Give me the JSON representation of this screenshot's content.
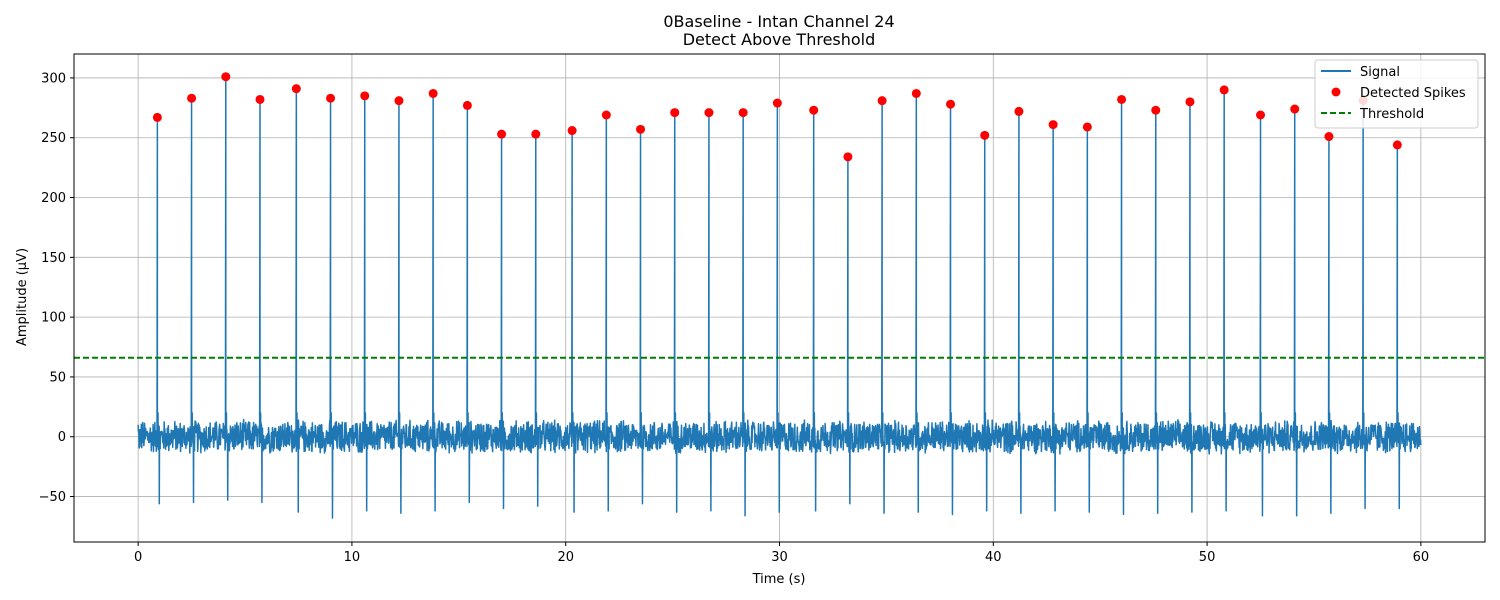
{
  "chart_data": {
    "type": "line",
    "title": "0Baseline - Intan Channel 24",
    "subtitle": "Detect Above Threshold",
    "xlabel": "Time (s)",
    "ylabel": "Amplitude (μV)",
    "xlim": [
      -3,
      63
    ],
    "ylim": [
      -88,
      320
    ],
    "xticks": [
      0,
      10,
      20,
      30,
      40,
      50,
      60
    ],
    "yticks": [
      -50,
      0,
      50,
      100,
      150,
      200,
      250,
      300
    ],
    "grid": true,
    "legend_position": "top-right",
    "threshold": 66,
    "colors": {
      "signal": "#1f77b4",
      "spikes": "#ff0000",
      "threshold": "#008000"
    },
    "series": [
      {
        "name": "Signal",
        "style": "line",
        "x_range": [
          0,
          60
        ],
        "noise_amplitude": 15,
        "trough_values": [
          -56,
          -55,
          -53,
          -55,
          -63,
          -68,
          -62,
          -64,
          -62,
          -55,
          -60,
          -58,
          -63,
          -62,
          -56,
          -63,
          -62,
          -66,
          -63,
          -62,
          -56,
          -64,
          -63,
          -65,
          -62,
          -64,
          -62,
          -63,
          -65,
          -64,
          -63,
          -62,
          -66,
          -66,
          -64
        ]
      },
      {
        "name": "Detected Spikes",
        "style": "markers",
        "x": [
          0.9,
          2.5,
          4.1,
          5.7,
          7.4,
          9.0,
          10.6,
          12.2,
          13.8,
          15.4,
          17.0,
          18.6,
          20.3,
          21.9,
          23.5,
          25.1,
          26.7,
          28.3,
          29.9,
          31.6,
          33.2,
          34.8,
          36.4,
          38.0,
          39.6,
          41.2,
          42.8,
          44.4,
          46.0,
          47.6,
          49.2,
          50.8,
          52.5,
          54.1,
          55.7,
          57.3,
          58.9
        ],
        "y": [
          267,
          283,
          301,
          282,
          291,
          283,
          285,
          281,
          287,
          277,
          253,
          253,
          256,
          269,
          257,
          271,
          271,
          271,
          279,
          273,
          234,
          281,
          287,
          278,
          252,
          272,
          261,
          259,
          282,
          273,
          280,
          290,
          269,
          274,
          251,
          281,
          244
        ]
      },
      {
        "name": "Threshold",
        "style": "dashed",
        "value": 66
      }
    ]
  }
}
